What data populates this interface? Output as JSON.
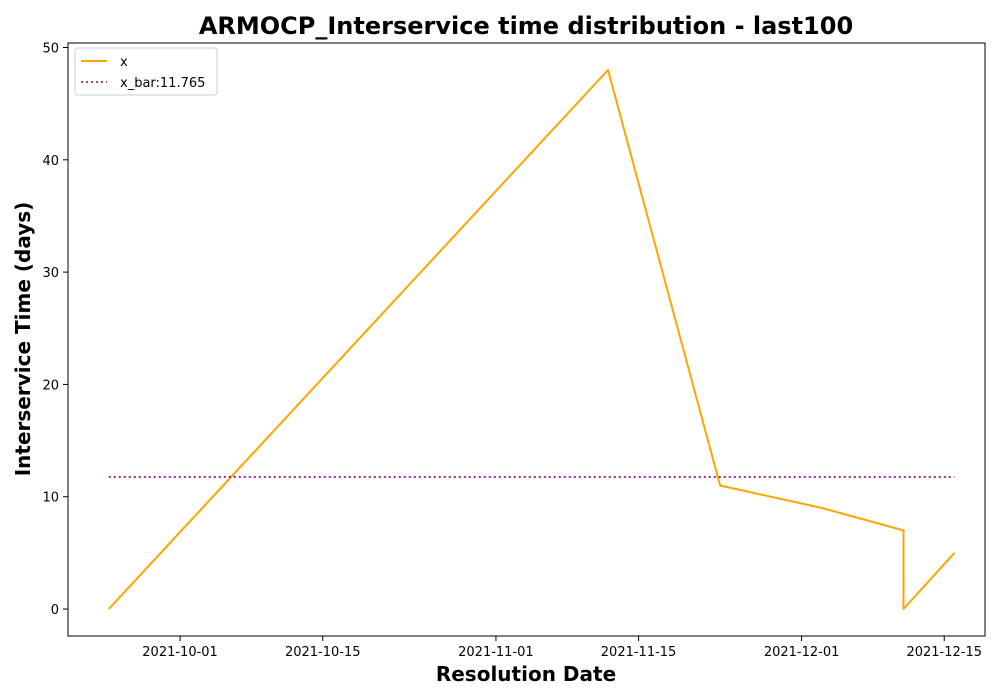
{
  "chart_data": {
    "type": "line",
    "title": "ARMOCP_Interservice time distribution - last100",
    "xlabel": "Resolution Date",
    "ylabel": "Interservice Time (days)",
    "xlim": [
      "2021-09-20",
      "2021-12-19"
    ],
    "ylim": [
      -2.4,
      50.4
    ],
    "x_ticks": [
      "2021-10-01",
      "2021-10-15",
      "2021-11-01",
      "2021-11-15",
      "2021-12-01",
      "2021-12-15"
    ],
    "y_ticks": [
      0,
      10,
      20,
      30,
      40,
      50
    ],
    "grid": false,
    "legend_position": "top-left",
    "series": [
      {
        "name": "x",
        "color": "#ffa500",
        "style": "solid",
        "x": [
          "2021-09-24",
          "2021-11-12",
          "2021-11-23",
          "2021-12-03",
          "2021-12-11",
          "2021-12-11",
          "2021-12-16"
        ],
        "y": [
          0,
          48,
          11,
          9,
          7,
          0,
          5
        ]
      },
      {
        "name": "x_bar:11.765",
        "color": "#800080",
        "style": "dotted",
        "x": [
          "2021-09-24",
          "2021-12-16"
        ],
        "y": [
          11.765,
          11.765
        ]
      }
    ]
  }
}
